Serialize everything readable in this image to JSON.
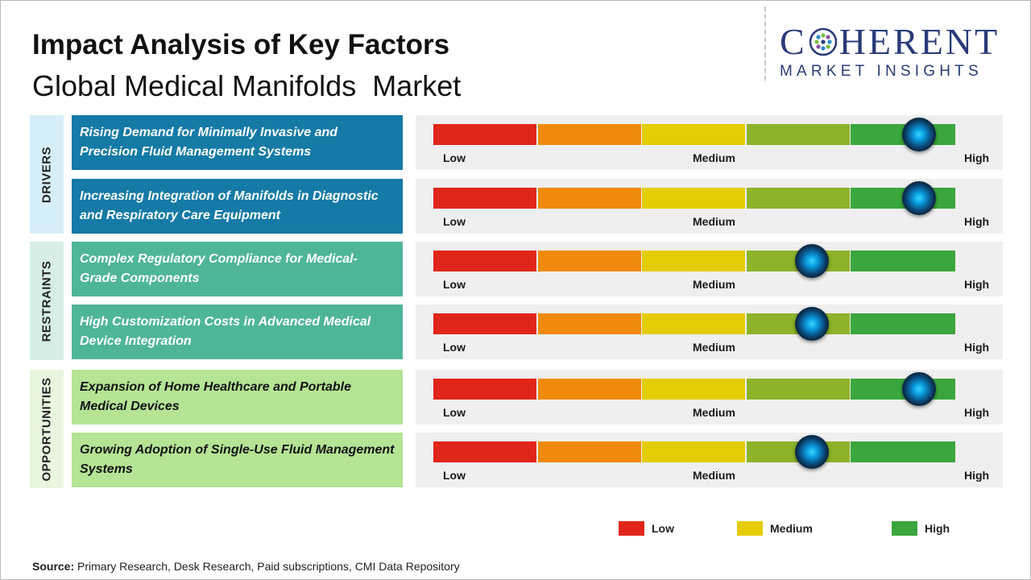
{
  "header": {
    "title": "Impact Analysis of Key Factors",
    "subtitle": "Global Medical Manifolds  Market"
  },
  "logo": {
    "main_text": "COHERENT",
    "sub_text": "MARKET INSIGHTS"
  },
  "colors": {
    "low": "#e0261b",
    "low_mid": "#ef8a0d",
    "medium": "#e4cc06",
    "mid_high": "#8db32a",
    "high": "#3aa63d",
    "drivers_bg": "#157aa6",
    "restraints_bg": "#4fb598",
    "opportunities_bg": "#b4e494",
    "drivers_side": "#d6eef8",
    "restraints_side": "#d7eee6",
    "opportunities_side": "#e9f6df"
  },
  "chart_data": {
    "type": "gauge-table",
    "scale_labels": [
      "Low",
      "Medium",
      "High"
    ],
    "categories": [
      "DRIVERS",
      "RESTRAINTS",
      "OPPORTUNITIES"
    ],
    "factors": [
      {
        "category": "DRIVERS",
        "text": "Rising Demand for Minimally Invasive and Precision Fluid Management Systems",
        "level": 0.93
      },
      {
        "category": "DRIVERS",
        "text": "Increasing Integration of Manifolds in Diagnostic and Respiratory Care Equipment",
        "level": 0.93
      },
      {
        "category": "RESTRAINTS",
        "text": "Complex Regulatory Compliance for Medical-Grade Components",
        "level": 0.725
      },
      {
        "category": "RESTRAINTS",
        "text": "High Customization Costs in Advanced Medical Device Integration",
        "level": 0.725
      },
      {
        "category": "OPPORTUNITIES",
        "text": "Expansion of Home Healthcare and Portable Medical Devices",
        "level": 0.93
      },
      {
        "category": "OPPORTUNITIES",
        "text": "Growing Adoption of Single-Use Fluid Management Systems",
        "level": 0.725
      }
    ],
    "legend": [
      "Low",
      "Medium",
      "High"
    ]
  },
  "source": {
    "label": "Source:",
    "text": "Primary Research, Desk Research, Paid subscriptions, CMI Data Repository"
  }
}
